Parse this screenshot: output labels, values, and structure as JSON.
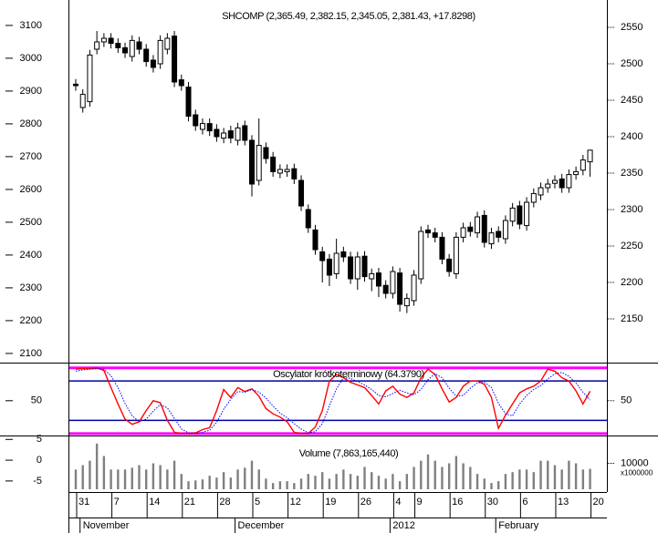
{
  "chart_data": [
    {
      "type": "candlestick",
      "title": "SHCOMP (2,365.49, 2,382.15, 2,345.05, 2,381.43, +17.8298)",
      "categories": [
        "31",
        null,
        null,
        null,
        null,
        "7",
        null,
        null,
        null,
        null,
        "14",
        null,
        null,
        null,
        null,
        "21",
        null,
        null,
        null,
        null,
        "28",
        null,
        null,
        null,
        null,
        "5",
        null,
        null,
        null,
        null,
        "12",
        null,
        null,
        null,
        null,
        "19",
        null,
        null,
        null,
        null,
        "26",
        null,
        null,
        null,
        null,
        "4",
        null,
        null,
        "9",
        null,
        null,
        null,
        null,
        "16",
        null,
        null,
        null,
        null,
        "30",
        null,
        null,
        null,
        null,
        "6",
        null,
        null,
        null,
        null,
        "13",
        null,
        null,
        null,
        null,
        "20"
      ],
      "months": [
        "November",
        "December",
        "2012",
        "February"
      ],
      "month_starts": [
        1,
        23,
        45,
        60
      ],
      "axis": "y2",
      "open": [
        2472,
        2440,
        2448,
        2520,
        2530,
        2535,
        2528,
        2522,
        2510,
        2530,
        2520,
        2505,
        2500,
        2520,
        2538,
        2478,
        2468,
        2430,
        2410,
        2418,
        2410,
        2398,
        2408,
        2395,
        2415,
        2395,
        2340,
        2385,
        2372,
        2350,
        2352,
        2356,
        2340,
        2300,
        2272,
        2242,
        2232,
        2212,
        2242,
        2235,
        2205,
        2236,
        2205,
        2213,
        2196,
        2185,
        2213,
        2168,
        2175,
        2205,
        2272,
        2268,
        2262,
        2232,
        2212,
        2262,
        2276,
        2268,
        2292,
        2253,
        2270,
        2260,
        2284,
        2305,
        2278,
        2310,
        2320,
        2330,
        2336,
        2342,
        2330,
        2348,
        2354,
        2365.49
      ],
      "high": [
        2479,
        2465,
        2519,
        2545,
        2542,
        2542,
        2535,
        2529,
        2539,
        2537,
        2527,
        2512,
        2539,
        2542,
        2545,
        2485,
        2475,
        2437,
        2425,
        2425,
        2417,
        2412,
        2415,
        2419,
        2422,
        2402,
        2425,
        2392,
        2379,
        2362,
        2362,
        2363,
        2347,
        2307,
        2279,
        2249,
        2239,
        2260,
        2249,
        2242,
        2242,
        2243,
        2219,
        2220,
        2203,
        2222,
        2220,
        2185,
        2217,
        2277,
        2279,
        2275,
        2269,
        2239,
        2269,
        2282,
        2283,
        2297,
        2299,
        2275,
        2277,
        2292,
        2309,
        2312,
        2317,
        2329,
        2337,
        2342,
        2347,
        2349,
        2355,
        2359,
        2375,
        2382.15
      ],
      "low": [
        2463,
        2433,
        2441,
        2513,
        2523,
        2521,
        2515,
        2508,
        2503,
        2513,
        2496,
        2488,
        2493,
        2513,
        2468,
        2463,
        2421,
        2408,
        2403,
        2401,
        2393,
        2391,
        2391,
        2388,
        2388,
        2318,
        2333,
        2363,
        2345,
        2343,
        2345,
        2335,
        2298,
        2268,
        2238,
        2200,
        2195,
        2205,
        2228,
        2198,
        2190,
        2201,
        2188,
        2180,
        2178,
        2178,
        2160,
        2158,
        2168,
        2198,
        2261,
        2255,
        2225,
        2208,
        2205,
        2255,
        2263,
        2261,
        2248,
        2246,
        2255,
        2253,
        2277,
        2273,
        2271,
        2303,
        2313,
        2323,
        2329,
        2323,
        2323,
        2341,
        2347,
        2345.05
      ],
      "close": [
        2470,
        2458,
        2512,
        2530,
        2535,
        2528,
        2522,
        2515,
        2532,
        2520,
        2503,
        2495,
        2532,
        2535,
        2475,
        2470,
        2428,
        2415,
        2418,
        2408,
        2400,
        2405,
        2398,
        2412,
        2395,
        2335,
        2388,
        2370,
        2352,
        2355,
        2355,
        2342,
        2305,
        2275,
        2245,
        2230,
        2210,
        2240,
        2235,
        2205,
        2235,
        2208,
        2212,
        2195,
        2185,
        2215,
        2170,
        2178,
        2210,
        2270,
        2268,
        2262,
        2232,
        2215,
        2262,
        2275,
        2270,
        2290,
        2255,
        2268,
        2262,
        2285,
        2302,
        2280,
        2310,
        2322,
        2330,
        2335,
        2340,
        2330,
        2348,
        2352,
        2368,
        2381.43
      ],
      "up_color": "#ffffff",
      "down_color": "#000000",
      "ylim": [
        2072,
        3172
      ],
      "yticks": [
        2100,
        2200,
        2300,
        2400,
        2500,
        2600,
        2700,
        2800,
        2900,
        3000,
        3100
      ],
      "y2lim": [
        2090,
        2585
      ],
      "y2ticks": [
        2150,
        2200,
        2250,
        2300,
        2350,
        2400,
        2450,
        2500,
        2550
      ]
    },
    {
      "type": "line",
      "title": "Oscylator krótkoterminowy (64.3790)",
      "series": [
        {
          "color": "#ff0000",
          "dash": false,
          "values": [
            98,
            99,
            99,
            100,
            96,
            70,
            45,
            22,
            14,
            18,
            35,
            50,
            47,
            20,
            2,
            0,
            0,
            1,
            6,
            9,
            35,
            67,
            55,
            70,
            64,
            68,
            57,
            38,
            30,
            25,
            18,
            2,
            0,
            0,
            10,
            35,
            80,
            90,
            85,
            78,
            74,
            70,
            58,
            45,
            65,
            72,
            60,
            55,
            62,
            85,
            98,
            90,
            68,
            48,
            55,
            72,
            80,
            80,
            75,
            55,
            8,
            28,
            45,
            62,
            68,
            72,
            80,
            98,
            95,
            85,
            80,
            65,
            45,
            64.379
          ]
        },
        {
          "color": "#0000ff",
          "dash": true,
          "values": [
            95,
            97,
            98,
            99,
            98,
            88,
            70,
            46,
            27,
            18,
            22,
            34,
            44,
            39,
            23,
            7,
            1,
            0,
            2,
            5,
            17,
            37,
            52,
            64,
            63,
            67,
            63,
            54,
            42,
            31,
            24,
            15,
            7,
            1,
            3,
            15,
            42,
            68,
            85,
            84,
            79,
            74,
            67,
            58,
            56,
            61,
            66,
            62,
            59,
            67,
            82,
            91,
            85,
            69,
            57,
            58,
            69,
            77,
            78,
            70,
            46,
            30,
            27,
            45,
            58,
            67,
            73,
            83,
            91,
            93,
            87,
            77,
            63,
            51
          ]
        }
      ],
      "levels": [
        {
          "value": 100,
          "color": "#ff00ff"
        },
        {
          "value": 80,
          "color": "#0000a0"
        },
        {
          "value": 20,
          "color": "#0000a0"
        },
        {
          "value": 0,
          "color": "#ff00ff"
        }
      ],
      "ylim": [
        -3,
        108
      ],
      "yticks": [
        50
      ],
      "y2ticks": [
        50
      ]
    },
    {
      "type": "bar",
      "title": "Volume (7,863,165,440)",
      "color": "#808080",
      "axis": "y2",
      "values": [
        7600,
        9300,
        11000,
        17600,
        12800,
        7600,
        7600,
        7600,
        8300,
        9300,
        7600,
        10000,
        9300,
        7600,
        11000,
        5900,
        3100,
        3400,
        3800,
        5200,
        4500,
        6600,
        4500,
        7600,
        8300,
        11000,
        7600,
        4100,
        2400,
        3100,
        3100,
        2400,
        4100,
        5900,
        5200,
        6600,
        4100,
        5900,
        7600,
        5900,
        5200,
        8600,
        6600,
        5200,
        4100,
        5900,
        3100,
        5900,
        8600,
        11000,
        13400,
        11000,
        8600,
        10000,
        12800,
        10000,
        8600,
        5900,
        4100,
        2400,
        3100,
        5900,
        6600,
        7600,
        7600,
        6600,
        11000,
        11000,
        9300,
        7600,
        11000,
        10000,
        7600,
        7863.16544
      ],
      "y2lim": [
        0,
        20000
      ],
      "y2ticks": [
        10000
      ],
      "y2_unit": "x1000000",
      "ylim": [
        -7,
        5.5
      ],
      "yticks": [
        5,
        0,
        -5
      ]
    }
  ]
}
